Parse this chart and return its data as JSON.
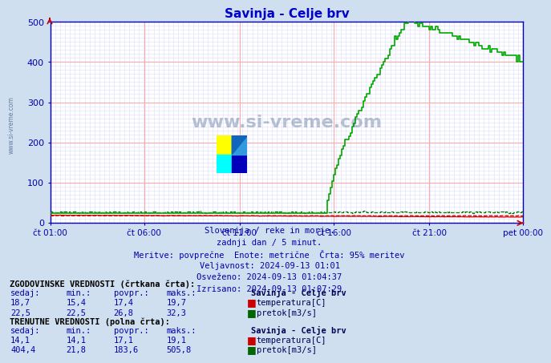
{
  "title": "Savinja - Celje brv",
  "title_color": "#0000cc",
  "bg_color": "#d0dff0",
  "plot_bg_color": "#ffffff",
  "grid_color_major": "#ffaaaa",
  "grid_color_minor": "#ddddff",
  "y_min": 0,
  "y_max": 500,
  "y_ticks": [
    0,
    100,
    200,
    300,
    400,
    500
  ],
  "x_labels": [
    "čt 01:00",
    "čt 06:00",
    "čt 11:00",
    "čt 16:00",
    "čt 21:00",
    "pet 00:00"
  ],
  "n_points": 288,
  "watermark": "www.si-vreme.com",
  "side_watermark": "www.si-vreme.com",
  "info_lines": [
    "Slovenija / reke in morje.",
    "zadnji dan / 5 minut.",
    "Meritve: povprečne  Enote: metrične  Črta: 95% meritev",
    "Veljavnost: 2024-09-13 01:01",
    "Osveženo: 2024-09-13 01:04:37",
    "Izrisano: 2024-09-13 01:07:29"
  ],
  "temp_hist_color": "#cc0000",
  "temp_curr_color": "#dd0000",
  "flow_hist_color": "#007700",
  "flow_curr_color": "#00aa00",
  "hist_temp_min": 15.4,
  "hist_temp_avg": 17.4,
  "hist_temp_max": 19.7,
  "hist_temp_now": 18.7,
  "hist_flow_min": 22.5,
  "hist_flow_avg": 26.8,
  "hist_flow_max": 32.3,
  "hist_flow_now": 22.5,
  "curr_temp_min": 14.1,
  "curr_temp_avg": 17.1,
  "curr_temp_max": 19.1,
  "curr_temp_now": 14.1,
  "curr_flow_min": 21.8,
  "curr_flow_avg": 183.6,
  "curr_flow_max": 505.8,
  "curr_flow_now": 404.4
}
